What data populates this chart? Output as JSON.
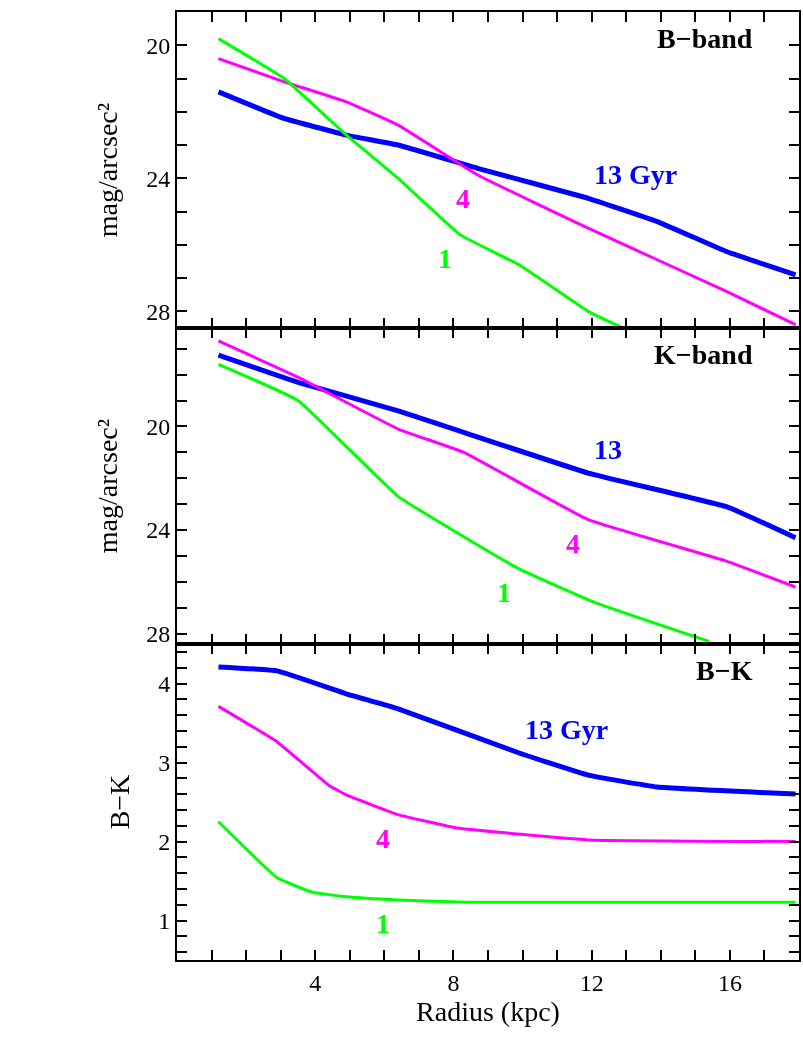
{
  "chart_data": [
    {
      "type": "line",
      "title": "B−band",
      "ylabel": "mag/arcsec²",
      "tick_labels": "y",
      "xlim": [
        0,
        18
      ],
      "ylim": [
        28.5,
        19
      ],
      "xticks": [
        {
          "value": 1,
          "label": null
        },
        {
          "value": 2,
          "label": null
        },
        {
          "value": 3,
          "label": null
        },
        {
          "value": 4,
          "label": null
        },
        {
          "value": 5,
          "label": null
        },
        {
          "value": 6,
          "label": null
        },
        {
          "value": 7,
          "label": null
        },
        {
          "value": 8,
          "label": null
        },
        {
          "value": 9,
          "label": null
        },
        {
          "value": 10,
          "label": null
        },
        {
          "value": 11,
          "label": null
        },
        {
          "value": 12,
          "label": null
        },
        {
          "value": 13,
          "label": null
        },
        {
          "value": 14,
          "label": null
        },
        {
          "value": 15,
          "label": null
        },
        {
          "value": 16,
          "label": null
        },
        {
          "value": 17,
          "label": null
        }
      ],
      "yticks": [
        20,
        {
          "value": 21,
          "label": null
        },
        {
          "value": 22,
          "label": null
        },
        {
          "value": 23,
          "label": null
        },
        24,
        {
          "value": 25,
          "label": null
        },
        {
          "value": 26,
          "label": null
        },
        {
          "value": 27,
          "label": null
        },
        28
      ],
      "series": [
        {
          "name": "13 Gyr",
          "color": "#0000ff",
          "x": [
            1.2,
            3.1,
            4.9,
            6.4,
            8.7,
            11.9,
            13.9,
            15.9,
            17.9
          ],
          "values": [
            21.4,
            22.2,
            22.7,
            23.0,
            23.7,
            24.6,
            25.3,
            26.2,
            26.9
          ]
        },
        {
          "name": "4",
          "color": "#ff00ff",
          "x": [
            1.2,
            3.1,
            4.9,
            6.4,
            8.7,
            11.9,
            15.9,
            17.9
          ],
          "values": [
            20.4,
            21.1,
            21.7,
            22.4,
            23.9,
            25.5,
            27.4,
            28.4
          ]
        },
        {
          "name": "1",
          "color": "#00ff00",
          "x": [
            1.2,
            3.1,
            4.9,
            6.4,
            8.2,
            9.9,
            11.9,
            12.9
          ],
          "values": [
            19.8,
            21.0,
            22.7,
            24.0,
            25.7,
            26.6,
            28.0,
            28.5
          ]
        }
      ]
    },
    {
      "type": "line",
      "title": "K−band",
      "ylabel": "mag/arcsec²",
      "tick_labels": "y",
      "xlim": [
        0,
        18
      ],
      "ylim": [
        28.4,
        16.2
      ],
      "xticks": [
        {
          "value": 1,
          "label": null
        },
        {
          "value": 2,
          "label": null
        },
        {
          "value": 3,
          "label": null
        },
        {
          "value": 4,
          "label": null
        },
        {
          "value": 5,
          "label": null
        },
        {
          "value": 6,
          "label": null
        },
        {
          "value": 7,
          "label": null
        },
        {
          "value": 8,
          "label": null
        },
        {
          "value": 9,
          "label": null
        },
        {
          "value": 10,
          "label": null
        },
        {
          "value": 11,
          "label": null
        },
        {
          "value": 12,
          "label": null
        },
        {
          "value": 13,
          "label": null
        },
        {
          "value": 14,
          "label": null
        },
        {
          "value": 15,
          "label": null
        },
        {
          "value": 16,
          "label": null
        },
        {
          "value": 17,
          "label": null
        }
      ],
      "yticks": [
        {
          "value": 17,
          "label": null
        },
        {
          "value": 18,
          "label": null
        },
        {
          "value": 19,
          "label": null
        },
        20,
        {
          "value": 21,
          "label": null
        },
        {
          "value": 22,
          "label": null
        },
        {
          "value": 23,
          "label": null
        },
        24,
        {
          "value": 25,
          "label": null
        },
        {
          "value": 26,
          "label": null
        },
        {
          "value": 27,
          "label": null
        },
        28
      ],
      "series": [
        {
          "name": "13",
          "color": "#0000ff",
          "x": [
            1.2,
            3.5,
            6.4,
            11.9,
            15.9,
            17.9
          ],
          "values": [
            17.25,
            18.3,
            19.4,
            21.8,
            23.1,
            24.3
          ]
        },
        {
          "name": "4",
          "color": "#ff00ff",
          "x": [
            1.2,
            3.5,
            6.4,
            8.3,
            11.9,
            15.9,
            17.9
          ],
          "values": [
            16.7,
            18.1,
            20.1,
            21.0,
            23.6,
            25.2,
            26.2
          ]
        },
        {
          "name": "1",
          "color": "#00ff00",
          "x": [
            1.2,
            3.5,
            6.4,
            9.9,
            12.1,
            15.4
          ],
          "values": [
            17.6,
            19.0,
            22.7,
            25.5,
            26.8,
            28.3
          ]
        }
      ]
    },
    {
      "type": "line",
      "title": "B−K",
      "xlabel": "Radius (kpc)",
      "ylabel": "B−K",
      "xlim": [
        0,
        18
      ],
      "ylim": [
        0.5,
        4.5
      ],
      "xticks": [
        {
          "value": 1,
          "label": null
        },
        {
          "value": 2,
          "label": null
        },
        {
          "value": 3,
          "label": null
        },
        4,
        {
          "value": 5,
          "label": null
        },
        {
          "value": 6,
          "label": null
        },
        {
          "value": 7,
          "label": null
        },
        8,
        {
          "value": 9,
          "label": null
        },
        {
          "value": 10,
          "label": null
        },
        {
          "value": 11,
          "label": null
        },
        12,
        {
          "value": 13,
          "label": null
        },
        {
          "value": 14,
          "label": null
        },
        {
          "value": 15,
          "label": null
        },
        16,
        {
          "value": 17,
          "label": null
        }
      ],
      "yticks": [
        {
          "value": 0.6,
          "label": null
        },
        {
          "value": 0.8,
          "label": null
        },
        1,
        {
          "value": 1.2,
          "label": null
        },
        {
          "value": 1.4,
          "label": null
        },
        {
          "value": 1.6,
          "label": null
        },
        {
          "value": 1.8,
          "label": null
        },
        2,
        {
          "value": 2.2,
          "label": null
        },
        {
          "value": 2.4,
          "label": null
        },
        {
          "value": 2.6,
          "label": null
        },
        {
          "value": 2.8,
          "label": null
        },
        3,
        {
          "value": 3.2,
          "label": null
        },
        {
          "value": 3.4,
          "label": null
        },
        {
          "value": 3.6,
          "label": null
        },
        {
          "value": 3.8,
          "label": null
        },
        4,
        {
          "value": 4.2,
          "label": null
        },
        {
          "value": 4.4,
          "label": null
        }
      ],
      "series": [
        {
          "name": "13 Gyr",
          "color": "#0000ff",
          "x": [
            1.2,
            2.9,
            4.9,
            6.4,
            9.9,
            11.9,
            13.9,
            17.9
          ],
          "values": [
            4.21,
            4.16,
            3.87,
            3.68,
            3.12,
            2.84,
            2.69,
            2.6
          ]
        },
        {
          "name": "4",
          "color": "#ff00ff",
          "x": [
            1.2,
            2.9,
            4.4,
            4.9,
            6.4,
            8.1,
            11.9,
            17.9
          ],
          "values": [
            3.71,
            3.26,
            2.71,
            2.59,
            2.34,
            2.17,
            2.02,
            2.0
          ]
        },
        {
          "name": "1",
          "color": "#00ff00",
          "x": [
            1.2,
            2.9,
            3.9,
            4.9,
            6.4,
            8.4,
            17.9
          ],
          "values": [
            2.25,
            1.54,
            1.36,
            1.3,
            1.26,
            1.23,
            1.23
          ]
        }
      ]
    }
  ]
}
